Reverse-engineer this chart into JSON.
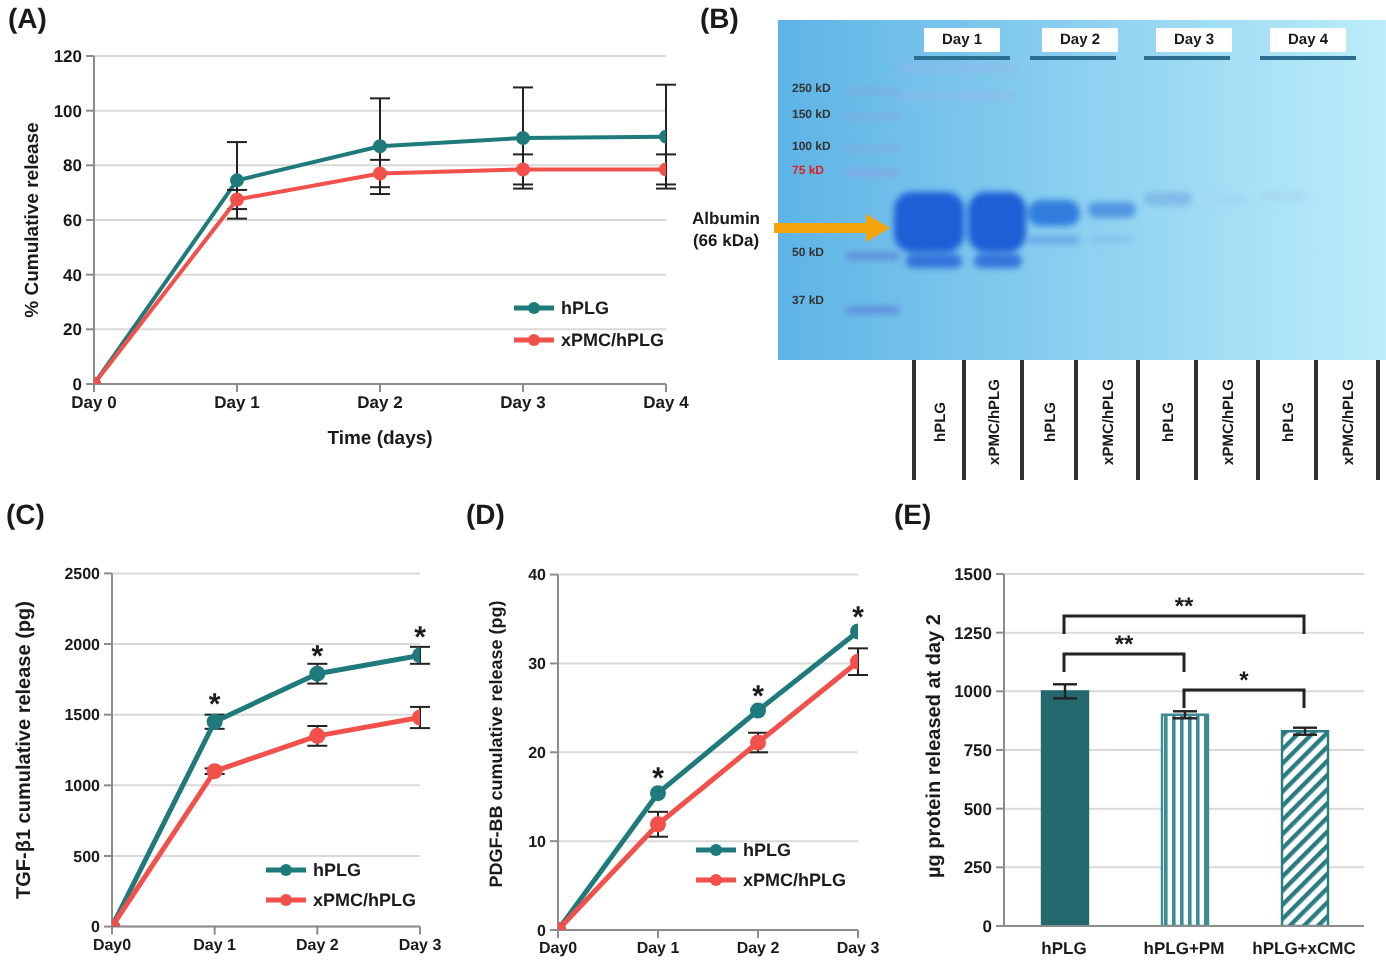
{
  "chart_data": [
    {
      "type": "line",
      "title": "(A)",
      "xlabel": "Time (days)",
      "ylabel": "% Cumulative release",
      "categories": [
        "Day 0",
        "Day 1",
        "Day 2",
        "Day 3",
        "Day 4"
      ],
      "series": [
        {
          "name": "hPLG",
          "color": "#1f7a7c",
          "values": [
            0,
            74.5,
            87,
            90,
            90.5
          ],
          "errors": [
            null,
            14,
            17.5,
            18.5,
            19
          ]
        },
        {
          "name": "xPMC/hPLG",
          "color": "#f2504b",
          "values": [
            0,
            67.5,
            77,
            78.5,
            78.5
          ],
          "errors": [
            null,
            3.5,
            5,
            5.5,
            5.5
          ]
        }
      ],
      "ylim": [
        0,
        120
      ],
      "yticks": [
        0,
        20,
        40,
        60,
        80,
        100,
        120
      ],
      "grid": "y",
      "legend": "bottom right",
      "marker": "circle",
      "line_style": "solid"
    },
    {
      "type": "other",
      "title": "(B)",
      "annotations": [
        "Day 1",
        "Day 2",
        "Day 3",
        "Day 4",
        "250 kD",
        "150 kD",
        "100 kD",
        "75 kD",
        "50 kD",
        "37 kD",
        "Albumin (66 kDa)",
        "hPLG",
        "xPMC/hPLG",
        "hPLG",
        "xPMC/hPLG",
        "hPLG",
        "xPMC/hPLG",
        "hPLG",
        "xPMC/hPLG"
      ]
    },
    {
      "type": "line",
      "title": "(C)",
      "ylabel": "TGF-β1 cumulative release (pg)",
      "categories": [
        "Day0",
        "Day 1",
        "Day 2",
        "Day 3"
      ],
      "series": [
        {
          "name": "hPLG",
          "color": "#1f7a7c",
          "values": [
            0,
            1450,
            1790,
            1920
          ],
          "errors": [
            null,
            50,
            70,
            60
          ]
        },
        {
          "name": "xPMC/hPLG",
          "color": "#f2504b",
          "values": [
            0,
            1100,
            1350,
            1480
          ],
          "errors": [
            null,
            20,
            70,
            75
          ]
        }
      ],
      "ylim": [
        0,
        2500
      ],
      "yticks": [
        0,
        500,
        1000,
        1500,
        2000,
        2500
      ],
      "grid": "y",
      "legend": "bottom right",
      "marker": "circle",
      "line_style": "solid",
      "annotations": [
        "*",
        "*",
        "*"
      ]
    },
    {
      "type": "line",
      "title": "(D)",
      "ylabel": "PDGF-BB cumulative release (pg)",
      "categories": [
        "Day0",
        "Day 1",
        "Day 2",
        "Day 3"
      ],
      "series": [
        {
          "name": "hPLG",
          "color": "#1f7a7c",
          "values": [
            0,
            15.4,
            24.7,
            33.6
          ]
        },
        {
          "name": "xPMC/hPLG",
          "color": "#f2504b",
          "values": [
            0,
            11.9,
            21.1,
            30.2
          ],
          "errors": [
            null,
            1.4,
            1.1,
            1.5
          ]
        }
      ],
      "ylim": [
        0,
        40
      ],
      "yticks": [
        0,
        10,
        20,
        30,
        40
      ],
      "grid": "y",
      "legend": "bottom right",
      "marker": "circle",
      "line_style": "solid",
      "annotations": [
        "*",
        "*",
        "*"
      ]
    },
    {
      "type": "bar",
      "title": "(E)",
      "ylabel": "µg protein released at day 2",
      "categories": [
        "hPLG",
        "hPLG+PM",
        "hPLG+xCMC"
      ],
      "values": [
        1000,
        900,
        830
      ],
      "errors": [
        30,
        15,
        15
      ],
      "colors": [
        "#23696e",
        "#3d8c93",
        "#2b7b83"
      ],
      "ylim": [
        0,
        1500
      ],
      "yticks": [
        0,
        250,
        500,
        750,
        1000,
        1250,
        1500
      ],
      "grid": "y",
      "annotations": [
        "**",
        "**",
        "*"
      ]
    }
  ]
}
